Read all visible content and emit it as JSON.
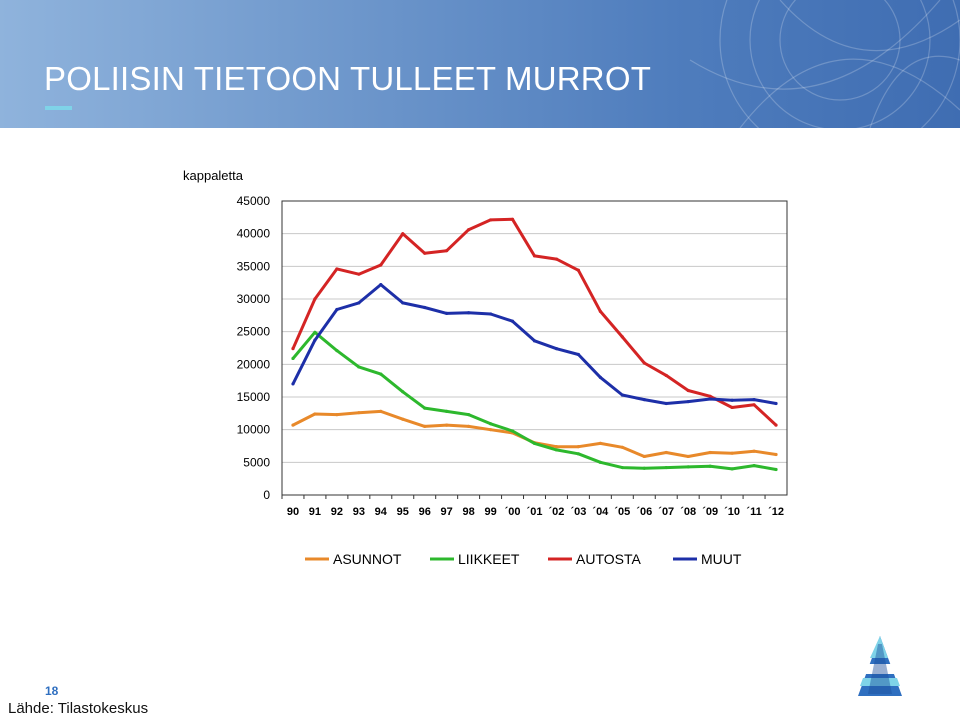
{
  "slide": {
    "title": "POLIISIN TIETOON TULLEET MURROT",
    "page_number": "18",
    "source": "Lähde: Tilastokeskus",
    "colors": {
      "header_blue": "#4f7dbd",
      "accent_cyan": "#7fd3e8"
    },
    "logo_icon": "police-logo-icon"
  },
  "chart_data": {
    "type": "line",
    "ylabel": "kappaletta",
    "ylim": [
      0,
      45000
    ],
    "yticks": [
      "0",
      "5000",
      "10000",
      "15000",
      "20000",
      "25000",
      "30000",
      "35000",
      "40000",
      "45000"
    ],
    "categories": [
      "90",
      "91",
      "92",
      "93",
      "94",
      "95",
      "96",
      "97",
      "98",
      "99",
      "´00",
      "´01",
      "´02",
      "´03",
      "´04",
      "´05",
      "´06",
      "´07",
      "´08",
      "´09",
      "´10",
      "´11",
      "´12"
    ],
    "grid": true,
    "legend_position": "bottom",
    "series": [
      {
        "name": "ASUNNOT",
        "color": "#e8892a",
        "values": [
          10700,
          12400,
          12300,
          12600,
          12800,
          11600,
          10500,
          10700,
          10500,
          10000,
          9500,
          8000,
          7400,
          7400,
          7900,
          7300,
          5900,
          6500,
          5900,
          6500,
          6400,
          6700,
          6200
        ]
      },
      {
        "name": "LIIKKEET",
        "color": "#2db82d",
        "values": [
          20900,
          24900,
          22100,
          19600,
          18500,
          15800,
          13300,
          12800,
          12300,
          10900,
          9800,
          7900,
          6900,
          6300,
          5000,
          4200,
          4100,
          4200,
          4300,
          4400,
          4000,
          4500,
          3900
        ]
      },
      {
        "name": "AUTOSTA",
        "color": "#d42424",
        "values": [
          22400,
          30000,
          34600,
          33800,
          35200,
          40000,
          37000,
          37400,
          40600,
          42100,
          42200,
          36600,
          36100,
          34400,
          28100,
          24200,
          20200,
          18300,
          16000,
          15100,
          13400,
          13800,
          10700
        ]
      },
      {
        "name": "MUUT",
        "color": "#1d2fa8",
        "values": [
          17000,
          23700,
          28400,
          29400,
          32200,
          29400,
          28700,
          27800,
          27900,
          27700,
          26600,
          23600,
          22400,
          21500,
          18000,
          15300,
          14600,
          14000,
          14300,
          14700,
          14500,
          14600,
          14000
        ]
      }
    ]
  }
}
